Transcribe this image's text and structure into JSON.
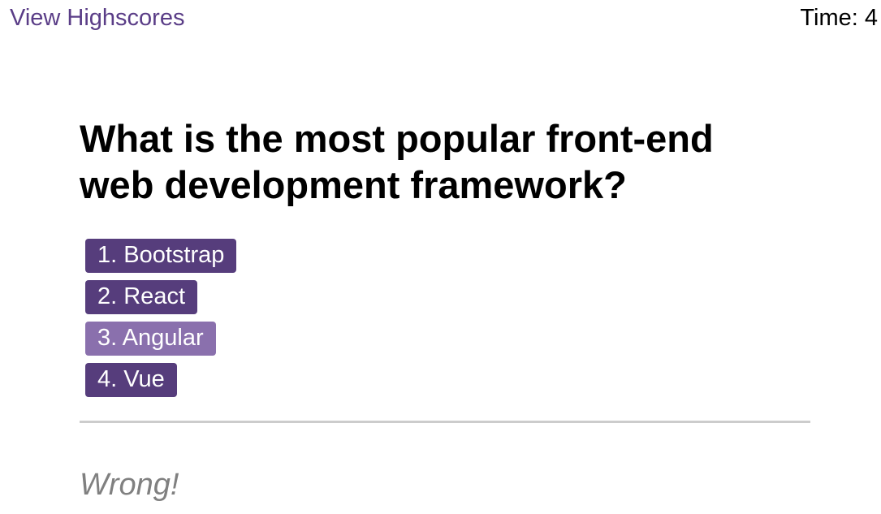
{
  "header": {
    "highscores_link": "View Highscores",
    "timer_label": "Time: ",
    "timer_value": "4"
  },
  "quiz": {
    "question": "What is the most popular front-end web development framework?",
    "choices": [
      {
        "label": "1. Bootstrap"
      },
      {
        "label": "2. React"
      },
      {
        "label": "3. Angular"
      },
      {
        "label": "4. Vue"
      }
    ],
    "feedback": "Wrong!"
  },
  "colors": {
    "button": "#563d7c",
    "button_hover": "#8a70ad",
    "link": "#5a3d87",
    "feedback": "#808080",
    "divider": "#cccccc"
  }
}
